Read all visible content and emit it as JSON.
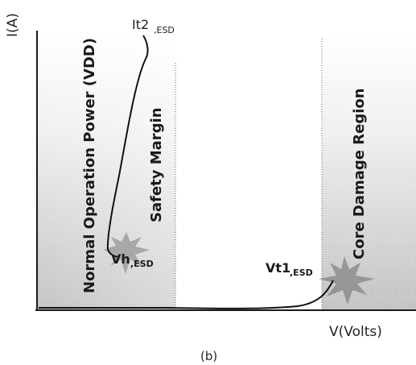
{
  "axes": {
    "y_label": "I(A)",
    "x_label": "V(Volts)"
  },
  "regions": [
    {
      "label": "Normal Operation Power (VDD)"
    },
    {
      "label": "Safety Margin"
    },
    {
      "label": "Core  Damage Region"
    }
  ],
  "points": {
    "it2": {
      "main": "It2",
      "sub": ",ESD"
    },
    "vh": {
      "main": "Vh",
      "sub": ",ESD"
    },
    "vt1": {
      "main": "Vt1",
      "sub": ",ESD"
    }
  },
  "caption": "(b)",
  "colors": {
    "ink": "#1a1a1a",
    "shade": "#b9b9b9",
    "burst": "#8d8d8d"
  }
}
